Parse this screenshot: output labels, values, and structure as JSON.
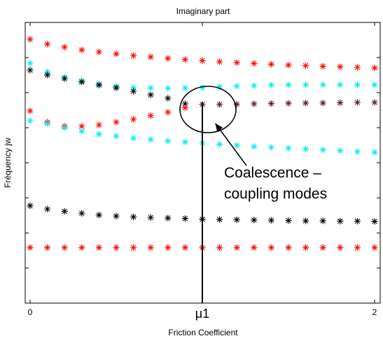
{
  "chart_data": {
    "type": "scatter",
    "title": "Imaginary part",
    "xlabel": "Friction Coefficient",
    "ylabel": "Fréquency jw",
    "xlim": [
      -0.05,
      2.05
    ],
    "ylim": [
      0,
      10
    ],
    "x_ticks": [
      {
        "value": 0,
        "label": "0"
      },
      {
        "value": 1,
        "label": "μ1"
      },
      {
        "value": 2,
        "label": "2"
      }
    ],
    "y_ticks": [
      0,
      1.25,
      2.5,
      3.75,
      5,
      6.25,
      7.5,
      8.75,
      10
    ],
    "y_tick_labels_shown": false,
    "annotation": {
      "lines": [
        "Coalescence –",
        "coupling modes"
      ],
      "circle_center": {
        "x": 1.0,
        "y": 6.8
      },
      "arrow_target": {
        "x": 1.1,
        "y": 6.3
      }
    },
    "marker": "asterisk",
    "grid": false,
    "series": [
      {
        "color": "#ff0000",
        "x": [
          0,
          0.1,
          0.2,
          0.3,
          0.4,
          0.5,
          0.6,
          0.7,
          0.8,
          0.9,
          1.0,
          1.1,
          1.2,
          1.3,
          1.4,
          1.5,
          1.6,
          1.7,
          1.8,
          1.9,
          2.0
        ],
        "y": [
          9.4,
          9.23,
          9.12,
          9.02,
          8.95,
          8.88,
          8.82,
          8.77,
          8.72,
          8.68,
          8.64,
          8.6,
          8.57,
          8.54,
          8.51,
          8.48,
          8.46,
          8.44,
          8.42,
          8.4,
          8.38
        ]
      },
      {
        "color": "#00eaea",
        "x": [
          0,
          0.1,
          0.2,
          0.3,
          0.4,
          0.5,
          0.6,
          0.7,
          0.8,
          0.9,
          1.0,
          1.1,
          1.2,
          1.3,
          1.4,
          1.5,
          1.6,
          1.7,
          1.8,
          1.9,
          2.0
        ],
        "y": [
          8.55,
          8.24,
          8.05,
          7.91,
          7.8,
          7.72,
          7.68,
          7.66,
          7.65,
          7.66,
          7.68,
          7.71,
          7.73,
          7.75,
          7.77,
          7.78,
          7.78,
          7.78,
          7.78,
          7.78,
          7.78
        ]
      },
      {
        "color": "#000000",
        "x": [
          0,
          0.1,
          0.2,
          0.3,
          0.4,
          0.5,
          0.6,
          0.7,
          0.8,
          0.9
        ],
        "y": [
          8.3,
          8.13,
          8.0,
          7.88,
          7.77,
          7.67,
          7.55,
          7.42,
          7.3,
          7.1
        ]
      },
      {
        "color": "#ff0000",
        "x": [
          0,
          0.1,
          0.2,
          0.3,
          0.4,
          0.5,
          0.6,
          0.7,
          0.8,
          0.9
        ],
        "y": [
          6.85,
          6.45,
          6.3,
          6.3,
          6.35,
          6.45,
          6.55,
          6.68,
          6.8,
          6.96
        ]
      },
      {
        "color": "#5a1818",
        "x": [
          1.0,
          1.1,
          1.2,
          1.3,
          1.4,
          1.5,
          1.6,
          1.7,
          1.8,
          1.9,
          2.0
        ],
        "y": [
          7.08,
          7.08,
          7.09,
          7.1,
          7.11,
          7.12,
          7.13,
          7.13,
          7.14,
          7.15,
          7.15
        ]
      },
      {
        "color": "#00eaea",
        "x": [
          0,
          0.1,
          0.2,
          0.3,
          0.4,
          0.5,
          0.6,
          0.7,
          0.8,
          0.9,
          1.0,
          1.1,
          1.2,
          1.3,
          1.4,
          1.5,
          1.6,
          1.7,
          1.8,
          1.9,
          2.0
        ],
        "y": [
          6.5,
          6.4,
          6.25,
          6.12,
          6.02,
          5.95,
          5.88,
          5.83,
          5.78,
          5.74,
          5.7,
          5.66,
          5.62,
          5.58,
          5.55,
          5.52,
          5.49,
          5.46,
          5.43,
          5.4,
          5.37
        ]
      },
      {
        "color": "#000000",
        "x": [
          0,
          0.1,
          0.2,
          0.3,
          0.4,
          0.5,
          0.6,
          0.7,
          0.8,
          0.9,
          1.0,
          1.1,
          1.2,
          1.3,
          1.4,
          1.5,
          1.6,
          1.7,
          1.8,
          1.9,
          2.0
        ],
        "y": [
          3.47,
          3.35,
          3.27,
          3.2,
          3.14,
          3.1,
          3.07,
          3.05,
          3.03,
          3.01,
          2.99,
          2.98,
          2.97,
          2.96,
          2.95,
          2.94,
          2.93,
          2.93,
          2.92,
          2.92,
          2.91
        ]
      },
      {
        "color": "#ff0000",
        "x": [
          0,
          0.1,
          0.2,
          0.3,
          0.4,
          0.5,
          0.6,
          0.7,
          0.8,
          0.9,
          1.0,
          1.1,
          1.2,
          1.3,
          1.4,
          1.5,
          1.6,
          1.7,
          1.8,
          1.9,
          2.0
        ],
        "y": [
          1.98,
          1.98,
          1.98,
          1.98,
          1.98,
          1.98,
          1.98,
          1.98,
          1.98,
          1.98,
          1.98,
          1.98,
          1.98,
          1.98,
          1.98,
          1.98,
          1.98,
          1.98,
          1.98,
          1.98,
          1.98
        ]
      }
    ]
  }
}
